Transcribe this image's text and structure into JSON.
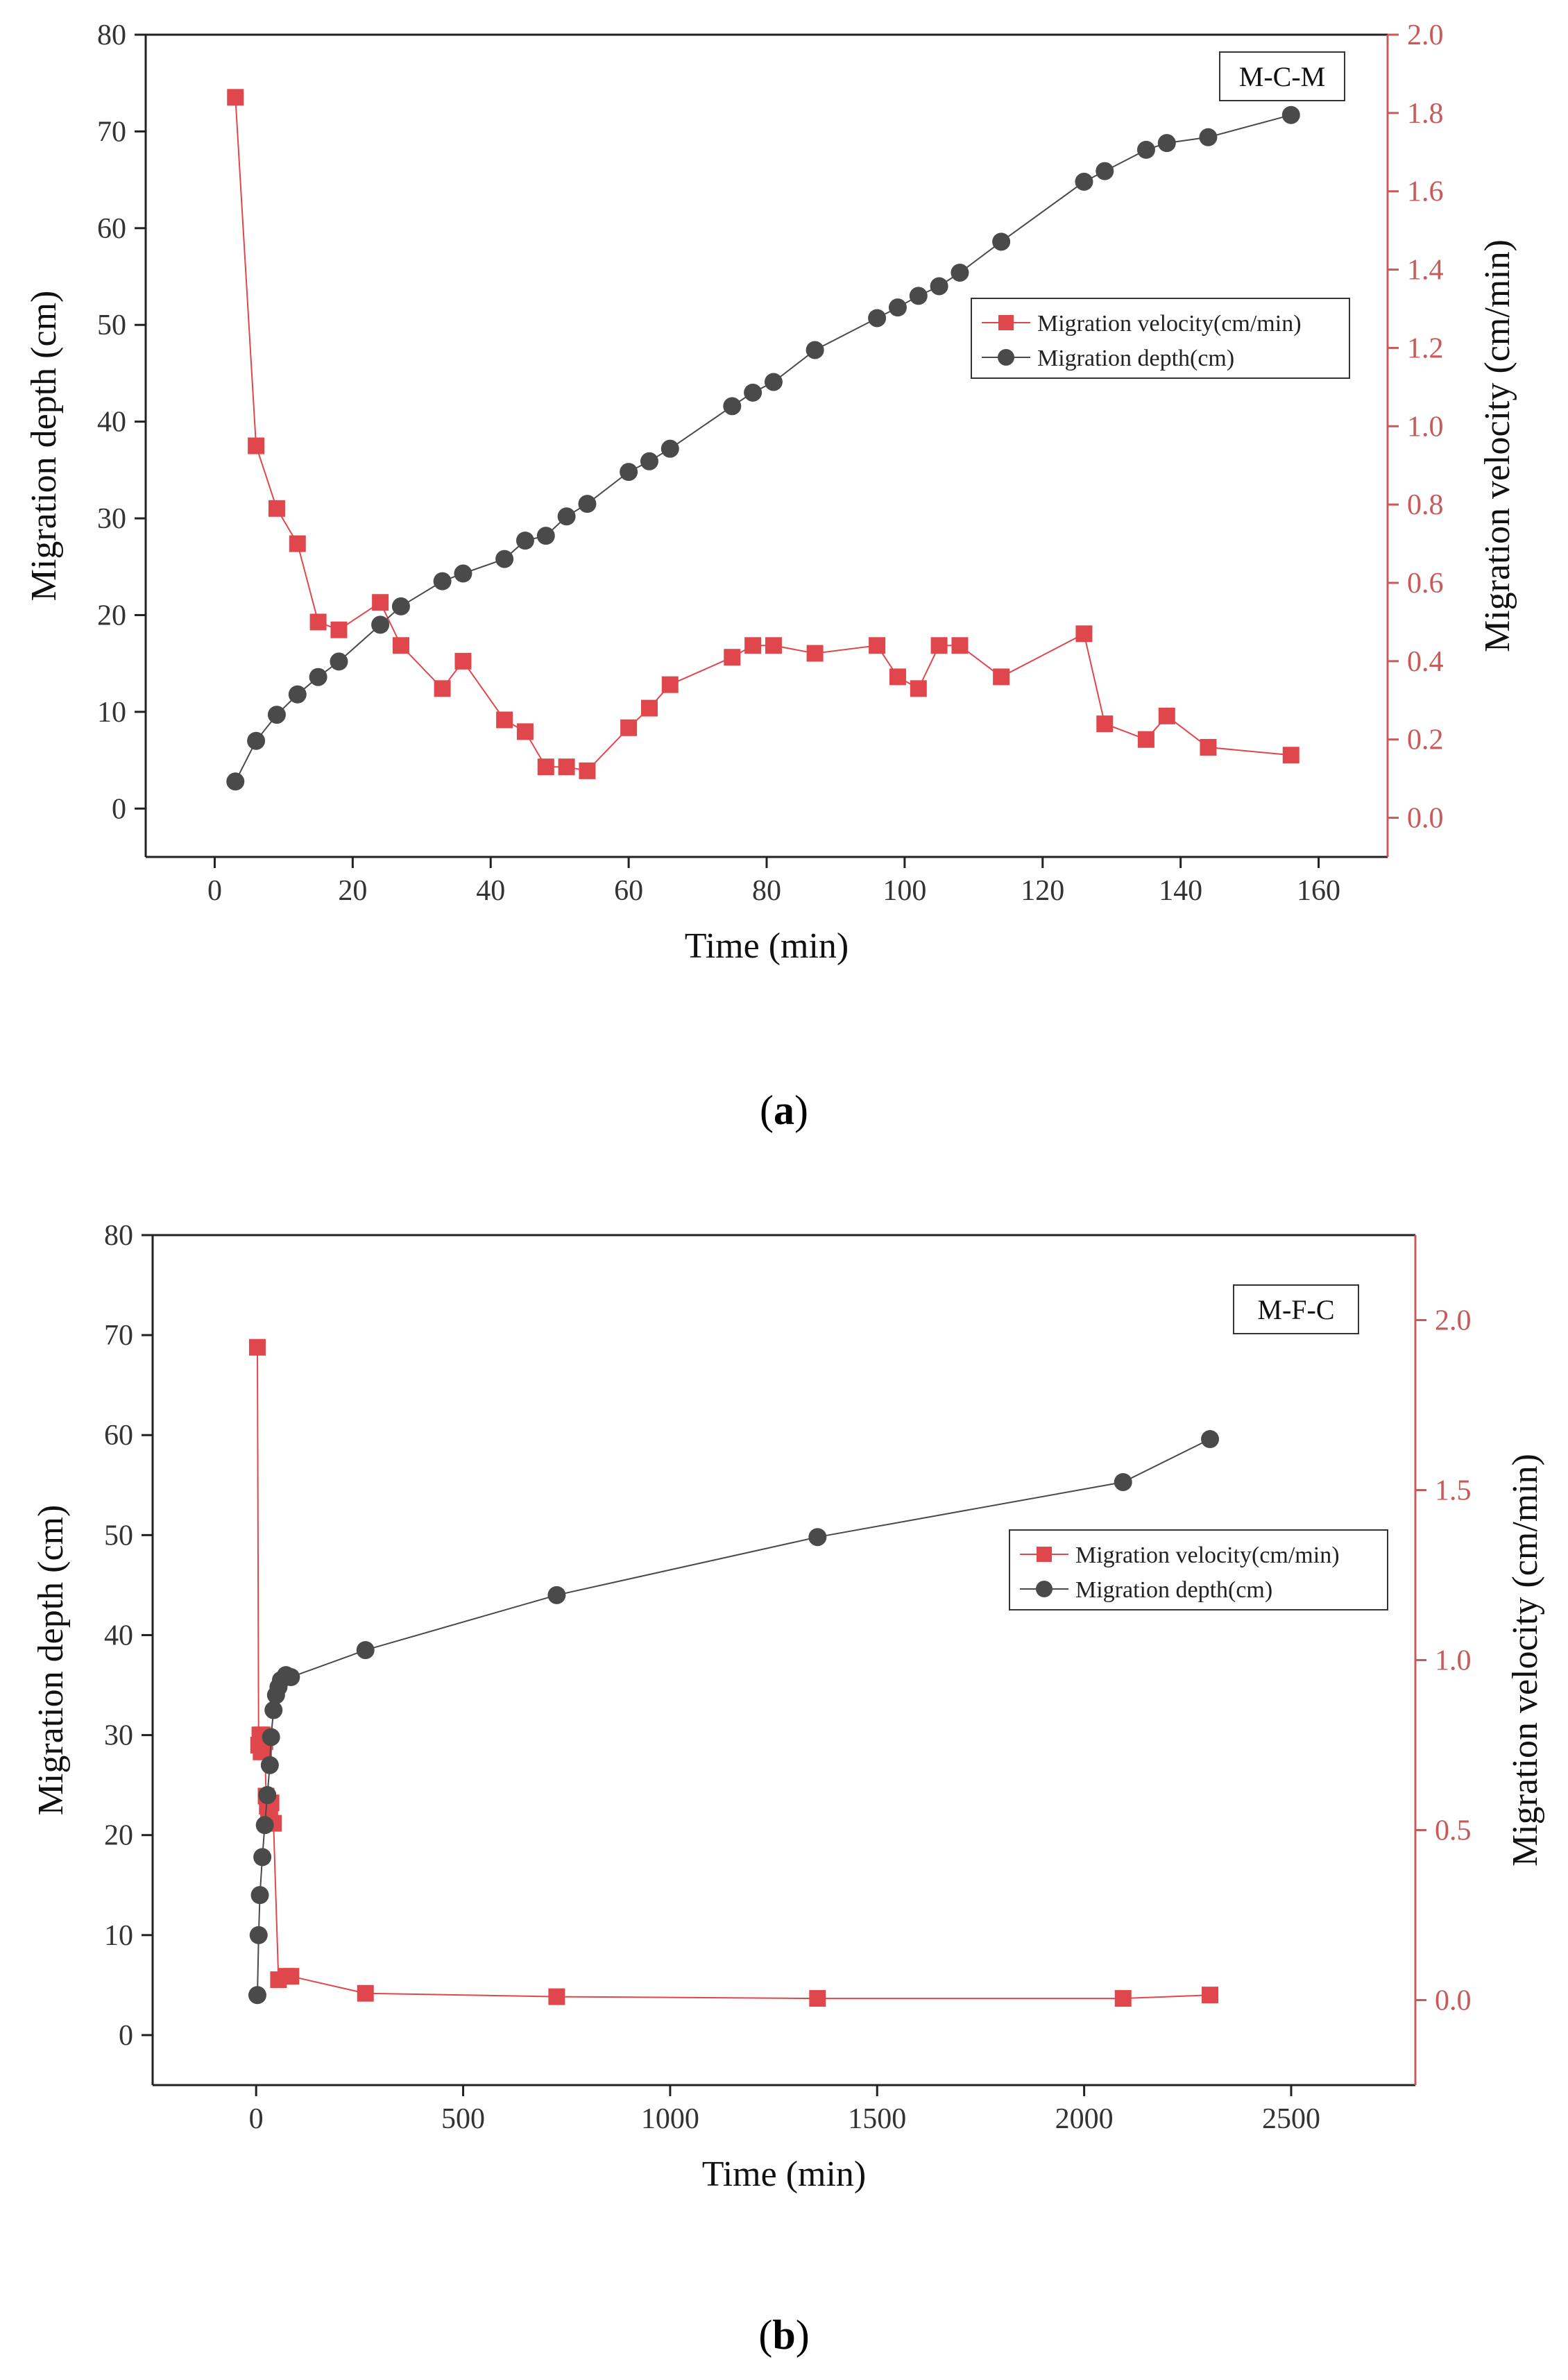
{
  "colors": {
    "depth": "#4a4a4a",
    "velocity": "#e0474c",
    "axis": "#222222",
    "right_axis": "#c85a5a"
  },
  "chart_data": [
    {
      "type": "line",
      "panel_label": "a",
      "box_label": "M-C-M",
      "xlabel": "Time (min)",
      "ylabel_left": "Migration depth (cm)",
      "ylabel_right": "Migration velocity (cm/min)",
      "xlim": [
        -10,
        170
      ],
      "ylim_left": [
        -5,
        80
      ],
      "ylim_right": [
        -0.1,
        2.0
      ],
      "xticks": [
        0,
        20,
        40,
        60,
        80,
        100,
        120,
        140,
        160
      ],
      "yticks_left": [
        0,
        10,
        20,
        30,
        40,
        50,
        60,
        70,
        80
      ],
      "yticks_right": [
        "0.0",
        "0.2",
        "0.4",
        "0.6",
        "0.8",
        "1.0",
        "1.2",
        "1.4",
        "1.6",
        "1.8",
        "2.0"
      ],
      "legend": [
        "Migration velocity(cm/min)",
        "Migration depth(cm)"
      ],
      "legend_position": "upper-right",
      "series": [
        {
          "name": "Migration velocity(cm/min)",
          "axis": "right",
          "marker": "square",
          "x": [
            3,
            6,
            9,
            12,
            15,
            18,
            24,
            27,
            33,
            36,
            42,
            45,
            48,
            51,
            54,
            60,
            63,
            66,
            75,
            78,
            81,
            87,
            96,
            99,
            102,
            105,
            108,
            114,
            126,
            129,
            135,
            138,
            144,
            156
          ],
          "y": [
            1.84,
            0.95,
            0.79,
            0.7,
            0.5,
            0.48,
            0.55,
            0.44,
            0.33,
            0.4,
            0.25,
            0.22,
            0.13,
            0.13,
            0.12,
            0.23,
            0.28,
            0.34,
            0.41,
            0.44,
            0.44,
            0.42,
            0.44,
            0.36,
            0.33,
            0.44,
            0.44,
            0.36,
            0.47,
            0.24,
            0.2,
            0.26,
            0.18,
            0.16
          ]
        },
        {
          "name": "Migration depth(cm)",
          "axis": "left",
          "marker": "circle",
          "x": [
            3,
            6,
            9,
            12,
            15,
            18,
            24,
            27,
            33,
            36,
            42,
            45,
            48,
            51,
            54,
            60,
            63,
            66,
            75,
            78,
            81,
            87,
            96,
            99,
            102,
            105,
            108,
            114,
            126,
            129,
            135,
            138,
            144,
            156
          ],
          "y": [
            2.8,
            7.0,
            9.7,
            11.8,
            13.6,
            15.2,
            19.0,
            20.9,
            23.5,
            24.3,
            25.8,
            27.7,
            28.2,
            30.2,
            31.5,
            34.8,
            35.9,
            37.2,
            41.6,
            43.0,
            44.1,
            47.4,
            50.7,
            51.8,
            53.0,
            54.0,
            55.4,
            58.6,
            64.8,
            65.9,
            68.1,
            68.8,
            69.4,
            71.7
          ]
        }
      ]
    },
    {
      "type": "line",
      "panel_label": "b",
      "box_label": "M-F-C",
      "xlabel": "Time (min)",
      "ylabel_left": "Migration depth (cm)",
      "ylabel_right": "Migration velocity (cm/min)",
      "xlim": [
        -250,
        2800
      ],
      "ylim_left": [
        -5,
        80
      ],
      "ylim_right": [
        -0.25,
        2.25
      ],
      "xticks": [
        0,
        500,
        1000,
        1500,
        2000,
        2500
      ],
      "yticks_left": [
        0,
        10,
        20,
        30,
        40,
        50,
        60,
        70,
        80
      ],
      "yticks_right": [
        "0.0",
        "0.5",
        "1.0",
        "1.5",
        "2.0"
      ],
      "legend": [
        "Migration velocity(cm/min)",
        "Migration depth(cm)"
      ],
      "legend_position": "upper-right",
      "series": [
        {
          "name": "Migration velocity(cm/min)",
          "axis": "right",
          "marker": "square",
          "x": [
            3,
            6,
            9,
            12,
            15,
            18,
            21,
            24,
            27,
            30,
            33,
            36,
            42,
            54,
            72,
            84,
            264,
            726,
            1356,
            2094,
            2304
          ],
          "y": [
            1.92,
            0.75,
            0.78,
            0.73,
            0.78,
            0.74,
            0.76,
            0.6,
            0.57,
            0.55,
            0.54,
            0.58,
            0.52,
            0.06,
            0.07,
            0.07,
            0.02,
            0.01,
            0.005,
            0.005,
            0.015
          ]
        },
        {
          "name": "Migration depth(cm)",
          "axis": "left",
          "marker": "circle",
          "x": [
            3,
            6,
            9,
            15,
            21,
            27,
            33,
            36,
            42,
            48,
            54,
            60,
            72,
            84,
            264,
            726,
            1356,
            2094,
            2304
          ],
          "y": [
            4.0,
            10.0,
            14.0,
            17.8,
            21.0,
            24.0,
            27.0,
            29.8,
            32.5,
            34.0,
            34.8,
            35.5,
            36.0,
            35.8,
            38.5,
            44.0,
            49.8,
            55.3,
            59.6
          ]
        }
      ]
    }
  ]
}
